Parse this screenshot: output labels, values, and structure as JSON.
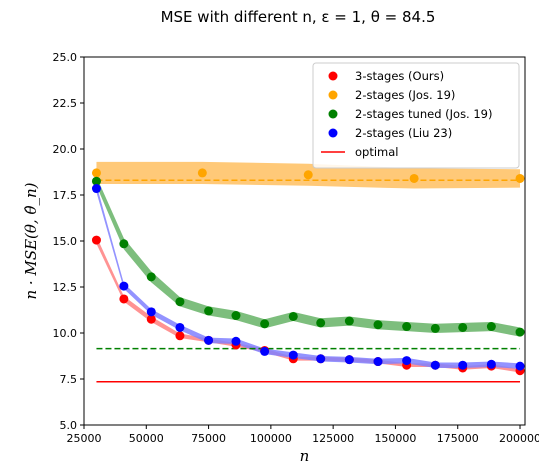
{
  "chart_data": {
    "type": "line",
    "title": "MSE with different n, ε = 1, θ = 84.5",
    "xlabel": "n",
    "ylabel": "n · MSE(θ, θ̂_n)",
    "xlim": [
      25000,
      202000
    ],
    "ylim": [
      5.0,
      25.0
    ],
    "x_ticks": [
      25000,
      50000,
      75000,
      100000,
      125000,
      150000,
      175000,
      200000
    ],
    "x_tick_labels": [
      "25000",
      "50000",
      "75000",
      "100000",
      "125000",
      "150000",
      "175000",
      "200000"
    ],
    "y_ticks": [
      5.0,
      7.5,
      10.0,
      12.5,
      15.0,
      17.5,
      20.0,
      22.5,
      25.0
    ],
    "y_tick_labels": [
      "5.0",
      "7.5",
      "10.0",
      "12.5",
      "15.0",
      "17.5",
      "20.0",
      "22.5",
      "25.0"
    ],
    "grid": false,
    "legend_position": "top-right",
    "series": [
      {
        "name": "3-stages (Ours)",
        "color": "#ff0000",
        "band_color": "#ff8080",
        "x": [
          30000,
          41000,
          52000,
          63500,
          75000,
          86000,
          97500,
          109000,
          120000,
          131500,
          143000,
          154500,
          166000,
          177000,
          188500,
          200000
        ],
        "y": [
          15.05,
          11.85,
          10.75,
          9.85,
          9.6,
          9.35,
          9.05,
          8.6,
          8.6,
          8.55,
          8.45,
          8.25,
          8.25,
          8.1,
          8.2,
          7.95
        ],
        "band": [
          0.2,
          0.15,
          0.15,
          0.12,
          0.1,
          0.1,
          0.1,
          0.1,
          0.1,
          0.1,
          0.1,
          0.1,
          0.1,
          0.1,
          0.1,
          0.1
        ]
      },
      {
        "name": "2-stages (Jos. 19)",
        "color": "#ffa500",
        "band_color": "#ffc060",
        "x": [
          30000,
          72500,
          115000,
          157500,
          200000
        ],
        "y": [
          18.7,
          18.7,
          18.6,
          18.4,
          18.4
        ],
        "band": [
          0.6,
          0.6,
          0.6,
          0.55,
          0.5
        ]
      },
      {
        "name": "2-stages tuned (Jos. 19)",
        "color": "#008000",
        "band_color": "#66b366",
        "x": [
          30000,
          41000,
          52000,
          63500,
          75000,
          86000,
          97500,
          109000,
          120000,
          131500,
          143000,
          154500,
          166000,
          177000,
          188500,
          200000
        ],
        "y": [
          18.25,
          14.85,
          13.05,
          11.7,
          11.2,
          10.95,
          10.5,
          10.9,
          10.55,
          10.65,
          10.45,
          10.35,
          10.25,
          10.3,
          10.35,
          10.05
        ],
        "band": [
          0.25,
          0.3,
          0.3,
          0.25,
          0.25,
          0.25,
          0.25,
          0.25,
          0.25,
          0.25,
          0.25,
          0.25,
          0.25,
          0.25,
          0.25,
          0.25
        ]
      },
      {
        "name": "2-stages (Liu 23)",
        "color": "#0000ff",
        "band_color": "#8080ff",
        "x": [
          30000,
          41000,
          52000,
          63500,
          75000,
          86000,
          97500,
          109000,
          120000,
          131500,
          143000,
          154500,
          166000,
          177000,
          188500,
          200000
        ],
        "y": [
          17.85,
          12.55,
          11.15,
          10.3,
          9.6,
          9.55,
          9.0,
          8.8,
          8.6,
          8.55,
          8.45,
          8.5,
          8.25,
          8.25,
          8.3,
          8.2
        ],
        "band": [
          0.2,
          0.15,
          0.15,
          0.15,
          0.15,
          0.15,
          0.15,
          0.15,
          0.15,
          0.15,
          0.15,
          0.15,
          0.15,
          0.15,
          0.15,
          0.15
        ]
      }
    ],
    "reference_lines": [
      {
        "name": "optimal",
        "color": "#ff0000",
        "style": "solid",
        "y": 7.35
      },
      {
        "name": "",
        "color": "#ffa500",
        "style": "dashed",
        "y": 18.3
      },
      {
        "name": "",
        "color": "#008000",
        "style": "dashed",
        "y": 9.15
      }
    ],
    "ref_x_range": [
      30000,
      200000
    ]
  }
}
